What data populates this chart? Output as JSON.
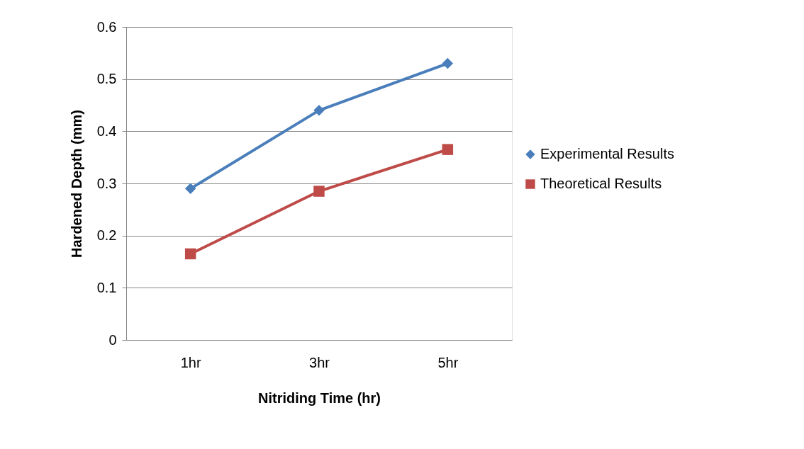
{
  "chart_data": {
    "type": "line",
    "xlabel": "Nitriding Time (hr)",
    "ylabel": "Hardened Depth (mm)",
    "categories": [
      "1hr",
      "3hr",
      "5hr"
    ],
    "series": [
      {
        "name": "Experimental Results",
        "color": "#4a7ebb",
        "marker": "diamond",
        "values": [
          0.29,
          0.44,
          0.53
        ]
      },
      {
        "name": "Theoretical Results",
        "color": "#be4b48",
        "marker": "square",
        "values": [
          0.165,
          0.285,
          0.365
        ]
      }
    ],
    "ylim": [
      0,
      0.6
    ],
    "yticks": [
      0,
      0.1,
      0.2,
      0.3,
      0.4,
      0.5,
      0.6
    ],
    "grid": "y",
    "legend": "right",
    "line_style": "solid"
  }
}
